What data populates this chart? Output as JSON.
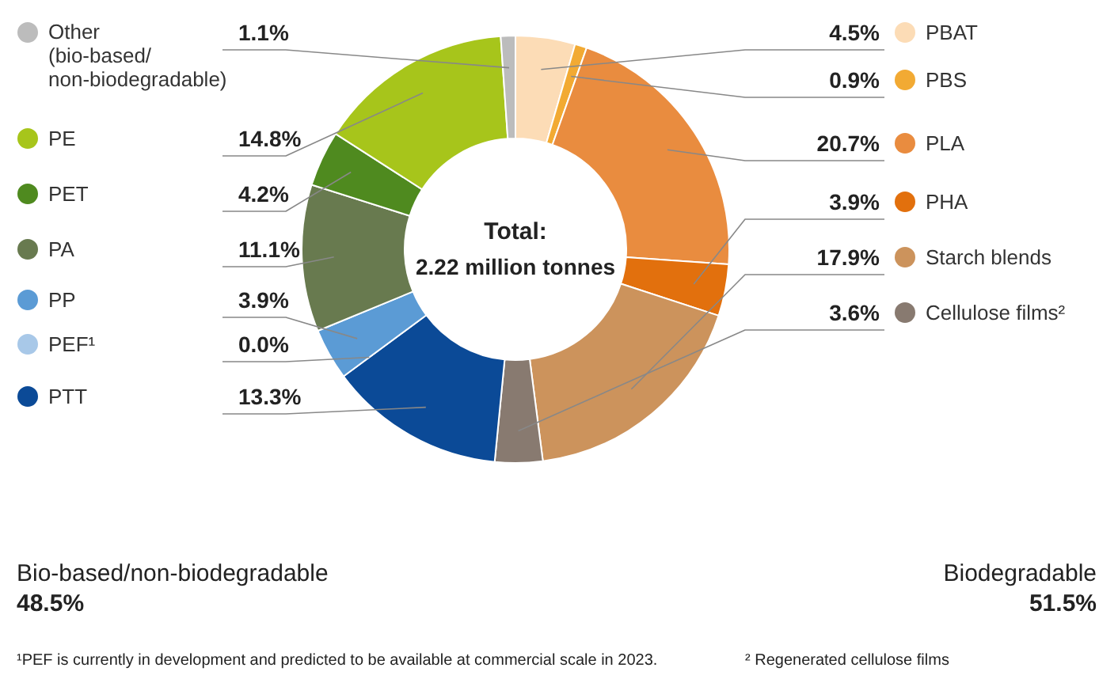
{
  "chart_data": {
    "type": "donut",
    "title": "Total:",
    "subtitle": "2.22 million tonnes",
    "categories": [
      "PBAT",
      "PBS",
      "PLA",
      "PHA",
      "Starch blends",
      "Cellulose films²",
      "PTT",
      "PEF¹",
      "PP",
      "PA",
      "PET",
      "PE",
      "Other\n(bio-based/\nnon-biodegradable)"
    ],
    "values": [
      4.5,
      0.9,
      20.7,
      3.9,
      17.9,
      3.6,
      13.3,
      0.0,
      3.9,
      11.1,
      4.2,
      14.8,
      1.1
    ],
    "value_labels": [
      "4.5%",
      "0.9%",
      "20.7%",
      "3.9%",
      "17.9%",
      "3.6%",
      "13.3%",
      "0.0%",
      "3.9%",
      "11.1%",
      "4.2%",
      "14.8%",
      "1.1%"
    ],
    "colors": [
      "#fcdcb6",
      "#f2aa33",
      "#e98c3f",
      "#e2700d",
      "#cc935c",
      "#887a70",
      "#0b4a97",
      "#a8c8e8",
      "#5b9bd5",
      "#687a4f",
      "#4f8a1f",
      "#a7c51b",
      "#bcbcbc"
    ],
    "legend": "top right",
    "annotations": [
      "Bio-based/non-biodegradable",
      "48.5%",
      "Biodegradable",
      "51.5%",
      "¹PEF is currently in development and predicted to be available at commercial scale in 2023.",
      "² Regenerated cellulose films"
    ]
  }
}
